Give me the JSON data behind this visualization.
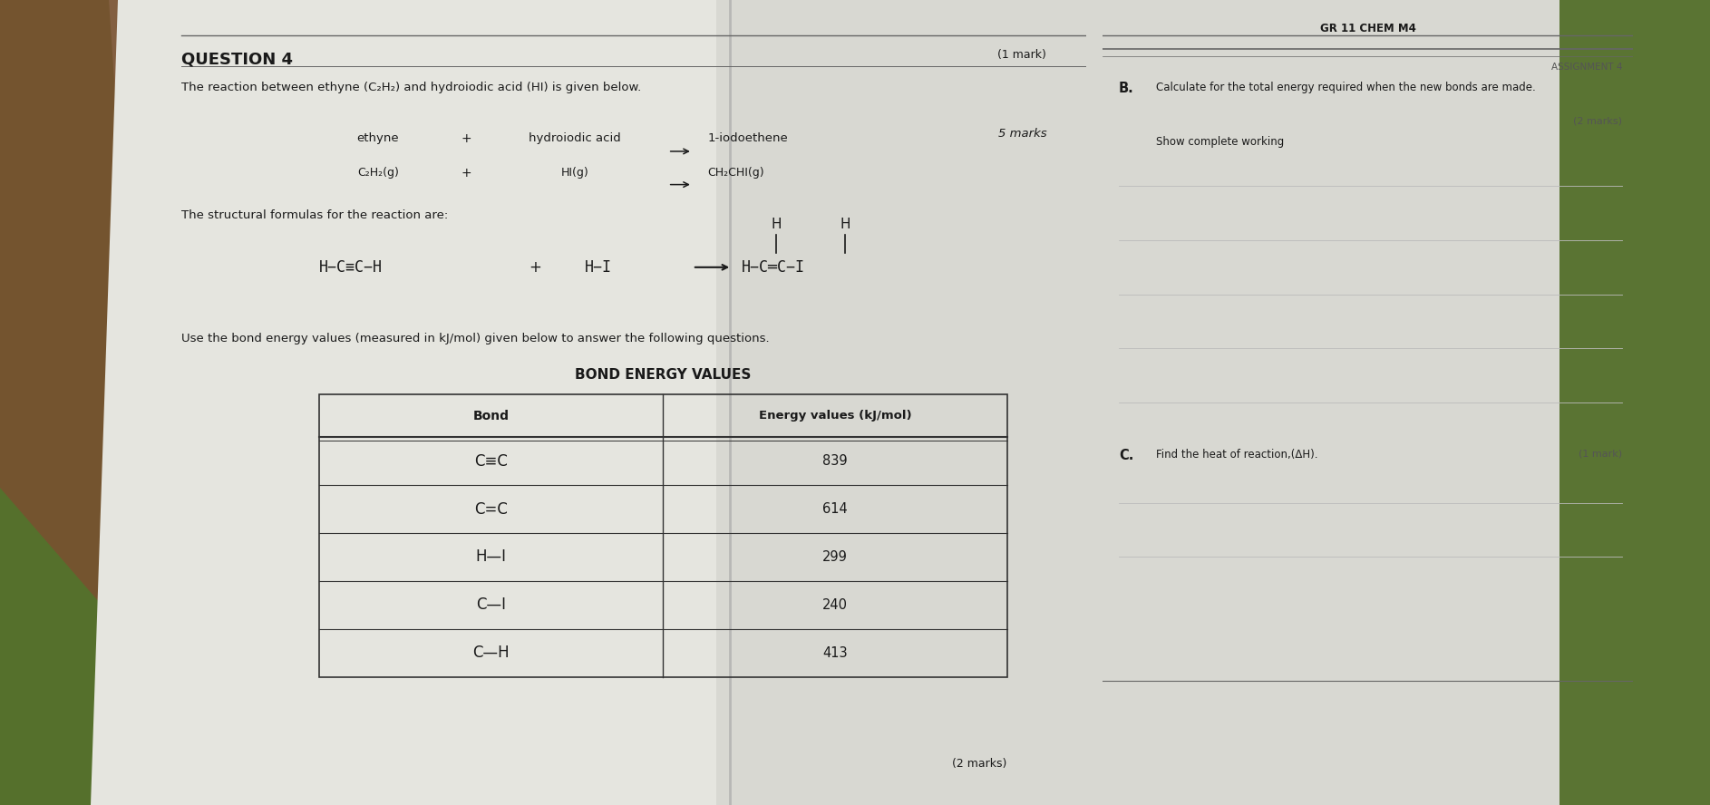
{
  "fig_bg": "#b8b8a0",
  "left_paper_bg": "#e8e8e3",
  "right_paper_bg": "#dcdcd6",
  "hand_bg": "#8B6914",
  "green_bg": "#5a7a2a",
  "title": "QUESTION 4",
  "title_mark": "(1 mark)",
  "intro_text": "The reaction between ethyne (C₂H₂) and hydroiodic acid (HI) is given below.",
  "marks_label": "5 marks",
  "reaction_ethyne": "ethyne",
  "reaction_c2h2": "C₂H₂(g)",
  "reaction_plus1": "+",
  "reaction_plus2": "+",
  "reaction_hi_label": "hydroiodic acid",
  "reaction_hi": "HI(g)",
  "reaction_arrow1": "→",
  "reaction_arrow2": "→",
  "reaction_product1": "1-iodoethene",
  "reaction_product2": "CH₂CHI(g)",
  "structural_label": "The structural formulas for the reaction are:",
  "bond_title": "BOND ENERGY VALUES",
  "bond_col1": "Bond",
  "bond_col2": "Energy values (kJ/mol)",
  "bond_rows": [
    [
      "C≡C",
      "839"
    ],
    [
      "C=C",
      "614"
    ],
    [
      "H—I",
      "299"
    ],
    [
      "C—I",
      "240"
    ],
    [
      "C—H",
      "413"
    ]
  ],
  "bottom_mark": "(2 marks)",
  "right_header": "GR 11 CHEM M4",
  "right_subheader": "ASSIGNMENT 4",
  "right_B_label": "B.",
  "right_B_text": "Calculate for the total energy required when the new bonds are made.",
  "right_B_sub": "Show complete working",
  "right_B_mark": "(2 marks)",
  "right_C_label": "C.",
  "right_C_text": "Find the heat of reaction,(ΔH).",
  "right_C_mark": "(1 mark)",
  "use_bond_text": "Use the bond energy values (measured in kJ/mol) given below to answer the following questions.",
  "text_color": "#1a1a1a",
  "line_color": "#666666",
  "table_line_color": "#333333"
}
